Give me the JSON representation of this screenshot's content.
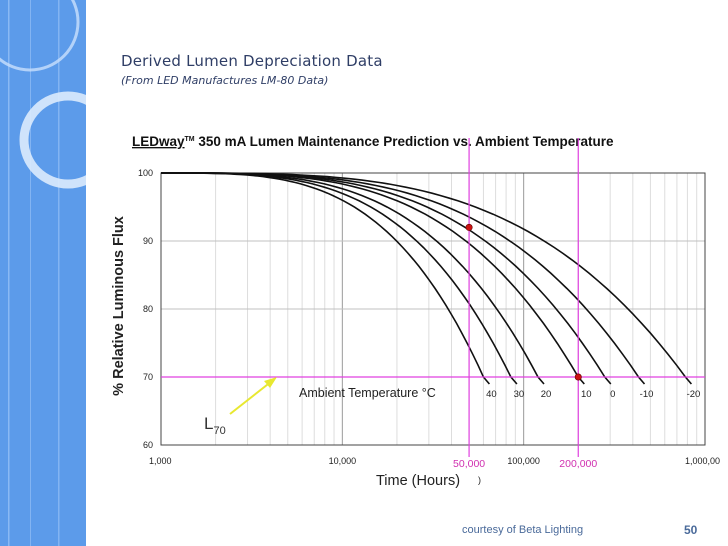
{
  "slide": {
    "title": "Derived Lumen Depreciation Data",
    "subtitle": "(From LED Manufactures LM-80 Data)",
    "footer_credit": "courtesy of Beta Lighting",
    "page_number": "50"
  },
  "colors": {
    "sidebar": "#4b8fe6",
    "sidebar_light": "#a9cdfa",
    "text_navy": "#2f3e66",
    "magenta": "#e040e0",
    "marker": "#cc1111",
    "arrow": "#f2f23a"
  },
  "chart_data": {
    "type": "line",
    "title_brand": "LEDway",
    "title_tm": "TM",
    "title_rest": " 350 mA Lumen Maintenance Prediction vs. Ambient Temperature",
    "xlabel": "Time (Hours)",
    "ylabel": "% Relative Luminous Flux",
    "x_scale": "log",
    "xlim": [
      1000,
      1000000
    ],
    "ylim": [
      60,
      100
    ],
    "x_ticks": [
      {
        "value": 1000,
        "label": "1,000"
      },
      {
        "value": 10000,
        "label": "10,000"
      },
      {
        "value": 100000,
        "label": "100,000"
      },
      {
        "value": 1000000,
        "label": "1,000,000"
      }
    ],
    "y_ticks": [
      60,
      70,
      80,
      90,
      100
    ],
    "legend_title": "Ambient Temperature °C",
    "series": [
      {
        "name": "40",
        "l70_hours": 60000
      },
      {
        "name": "30",
        "l70_hours": 85000
      },
      {
        "name": "20",
        "l70_hours": 120000
      },
      {
        "name": "10",
        "l70_hours": 200000
      },
      {
        "name": "0",
        "l70_hours": 280000
      },
      {
        "name": "-10",
        "l70_hours": 430000
      },
      {
        "name": "-20",
        "l70_hours": 780000
      }
    ],
    "reference_lines": {
      "horizontal": {
        "y": 70,
        "label_main": "L",
        "label_sub": "70"
      },
      "vertical": [
        {
          "x": 50000,
          "label": "50,000"
        },
        {
          "x": 200000,
          "label": "200,000"
        }
      ]
    },
    "markers": [
      {
        "x": 50000,
        "y": 92
      },
      {
        "x": 200000,
        "y": 70
      }
    ]
  }
}
